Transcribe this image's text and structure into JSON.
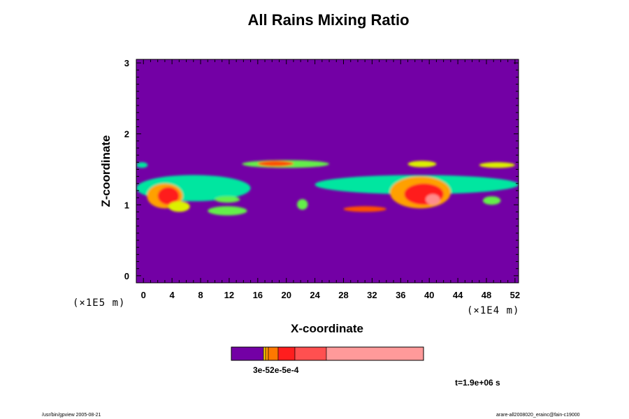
{
  "title": "All Rains Mixing Ratio",
  "chart_data": {
    "type": "heatmap",
    "title": "All Rains Mixing Ratio",
    "xlabel": "X-coordinate",
    "ylabel": "Z-coordinate",
    "x_unit": "(×1E4 m)",
    "y_unit": "(×1E5 m)",
    "xlim": [
      -1,
      52.5
    ],
    "ylim": [
      -0.1,
      3.05
    ],
    "xticks": [
      0,
      4,
      8,
      12,
      16,
      20,
      24,
      28,
      32,
      36,
      40,
      44,
      48,
      52
    ],
    "yticks": [
      0,
      1,
      2,
      3
    ],
    "background_color": "#7300a5",
    "palette": [
      "#7300a5",
      "#1e78ff",
      "#00c8ff",
      "#00e6a0",
      "#64f04a",
      "#dcf000",
      "#ffa000",
      "#ff5000",
      "#ff1e1e",
      "#ff8c8c"
    ],
    "regions": [
      {
        "x": [
          -1,
          0.6
        ],
        "z": [
          1.52,
          1.6
        ],
        "level": 3
      },
      {
        "x": [
          -1,
          15
        ],
        "z": [
          1.05,
          1.42
        ],
        "level": 3
      },
      {
        "x": [
          0.5,
          5.5
        ],
        "z": [
          0.95,
          1.3
        ],
        "level": 6
      },
      {
        "x": [
          2,
          5
        ],
        "z": [
          1.0,
          1.25
        ],
        "level": 8
      },
      {
        "x": [
          3.5,
          6.5
        ],
        "z": [
          0.9,
          1.05
        ],
        "level": 5
      },
      {
        "x": [
          9,
          14.5
        ],
        "z": [
          0.85,
          0.98
        ],
        "level": 4
      },
      {
        "x": [
          10,
          13.5
        ],
        "z": [
          1.03,
          1.12
        ],
        "level": 4
      },
      {
        "x": [
          21.5,
          23
        ],
        "z": [
          0.93,
          1.08
        ],
        "level": 4
      },
      {
        "x": [
          13.8,
          26
        ],
        "z": [
          1.52,
          1.63
        ],
        "level": 4
      },
      {
        "x": [
          16,
          21
        ],
        "z": [
          1.54,
          1.62
        ],
        "level": 7
      },
      {
        "x": [
          24,
          52.5
        ],
        "z": [
          1.15,
          1.42
        ],
        "level": 3
      },
      {
        "x": [
          28,
          34
        ],
        "z": [
          0.9,
          0.98
        ],
        "level": 7
      },
      {
        "x": [
          34.5,
          43
        ],
        "z": [
          0.95,
          1.4
        ],
        "level": 6
      },
      {
        "x": [
          36.5,
          42
        ],
        "z": [
          1.0,
          1.3
        ],
        "level": 8
      },
      {
        "x": [
          39.5,
          41.5
        ],
        "z": [
          1.0,
          1.15
        ],
        "level": 9
      },
      {
        "x": [
          37,
          41
        ],
        "z": [
          1.53,
          1.62
        ],
        "level": 5
      },
      {
        "x": [
          47,
          52
        ],
        "z": [
          1.52,
          1.6
        ],
        "level": 5
      },
      {
        "x": [
          47.5,
          50
        ],
        "z": [
          1.0,
          1.12
        ],
        "level": 4
      }
    ],
    "colorbar": {
      "colors": [
        "#7300a5",
        "#ffd200",
        "#ff9600",
        "#ff7800",
        "#ff1e1e",
        "#ff5050",
        "#ff9a9a"
      ],
      "label": "3e-52e-5e-4"
    },
    "time_label": "t=1.9e+06 s"
  },
  "footer": {
    "left": "/usr/bin/gpview 2005-08-21",
    "right": "arare-all2008020_erainc@fain-c19000"
  }
}
